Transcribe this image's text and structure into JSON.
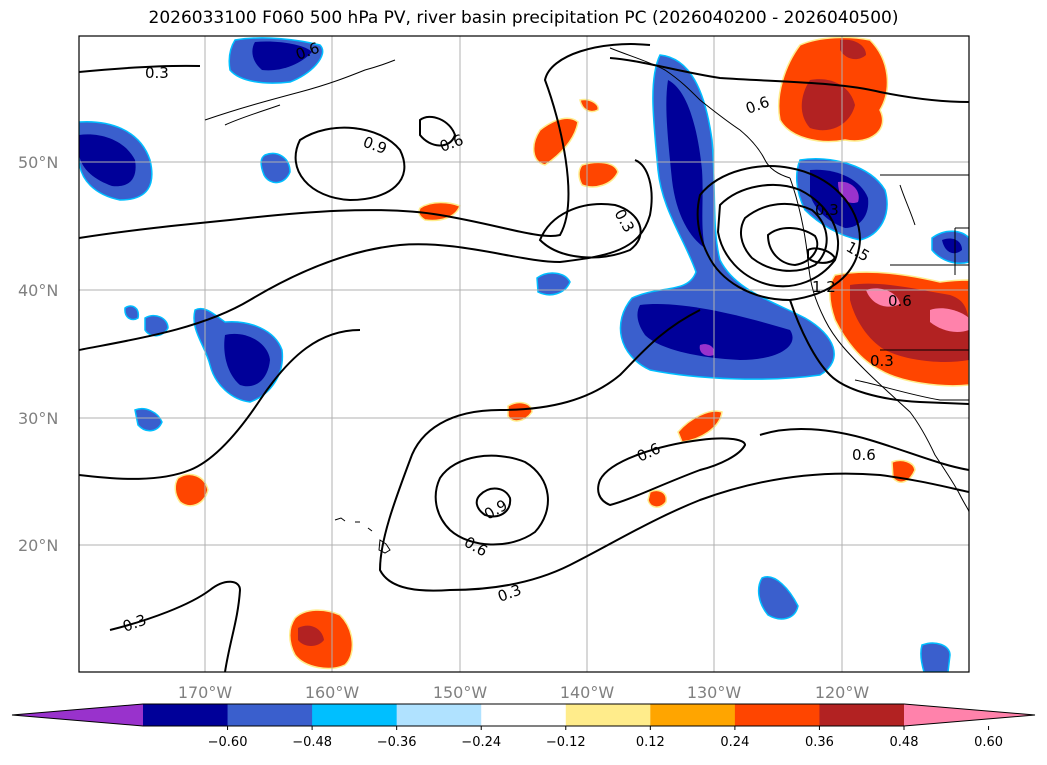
{
  "title": "2026033100 F060 500 hPa PV, river basin precipitation PC (2026040200 - 2026040500)",
  "lat_labels": [
    "50°N",
    "40°N",
    "30°N",
    "20°N"
  ],
  "lon_labels": [
    "170°W",
    "160°W",
    "150°W",
    "140°W",
    "130°W",
    "120°W"
  ],
  "contour_labels": [
    "0.3",
    "0.6",
    "0.9",
    "0.6",
    "0.3",
    "0.6",
    "0.3",
    "1.5",
    "1.2",
    "0.6",
    "0.3",
    "0.6",
    "0.6",
    "0.9",
    "0.6",
    "0.3",
    "0.3"
  ],
  "colorbar": {
    "ticks": [
      "−0.60",
      "−0.48",
      "−0.36",
      "−0.24",
      "−0.12",
      "0.12",
      "0.24",
      "0.36",
      "0.48",
      "0.60"
    ],
    "colors": [
      "#9932CC",
      "#000099",
      "#3A5FCD",
      "#00BFFF",
      "#B0E2FF",
      "#FFFFFF",
      "#FFEC8B",
      "#FFA500",
      "#FF4500",
      "#B22222",
      "#FF82AB"
    ]
  }
}
